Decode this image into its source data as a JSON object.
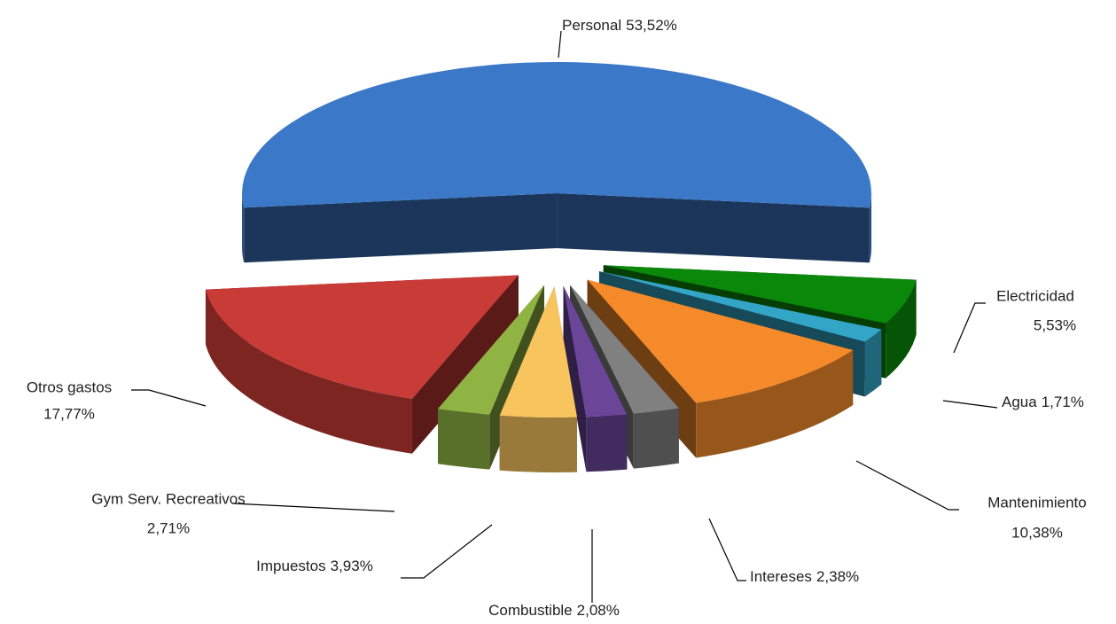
{
  "chart_data": {
    "type": "pie3d",
    "categories": [
      "Personal",
      "Electricidad",
      "Agua",
      "Mantenimiento",
      "Intereses",
      "Combustible",
      "Impuestos",
      "Gym Serv. Recreativos",
      "Otros gastos"
    ],
    "values": [
      53.52,
      5.53,
      1.71,
      10.38,
      2.38,
      2.08,
      3.93,
      2.71,
      17.77
    ],
    "value_labels": [
      "53,52%",
      "5,53%",
      "1,71%",
      "10,38%",
      "2,38%",
      "2,08%",
      "3,93%",
      "2,71%",
      "17,77%"
    ],
    "colors": [
      "#3b79c8",
      "#0a880a",
      "#33a5c6",
      "#f48a2a",
      "#808080",
      "#6b4597",
      "#f8c45e",
      "#8fb443",
      "#c93b36"
    ]
  }
}
